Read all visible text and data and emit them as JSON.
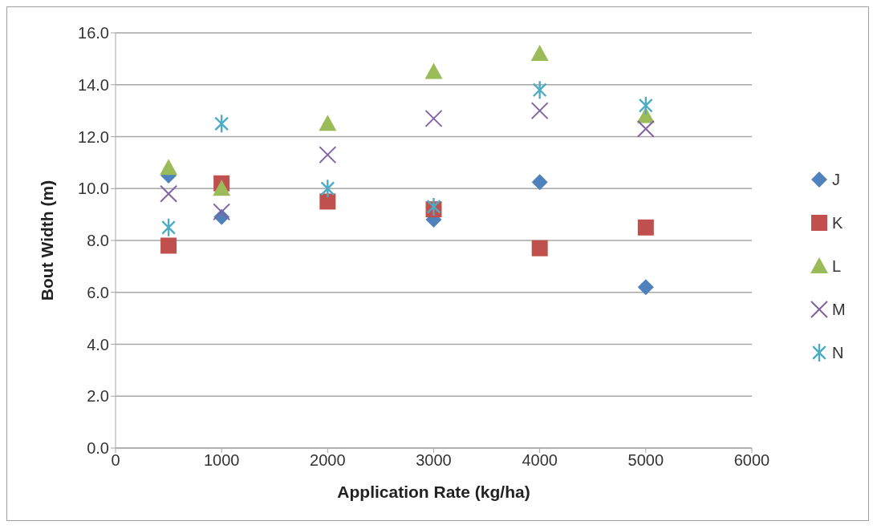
{
  "chart_data": {
    "type": "scatter",
    "xlabel": "Application Rate (kg/ha)",
    "ylabel": "Bout Width (m)",
    "x": [
      500,
      1000,
      2000,
      3000,
      4000,
      5000
    ],
    "xlim": [
      0,
      6000
    ],
    "xticks": [
      0,
      1000,
      2000,
      3000,
      4000,
      5000,
      6000
    ],
    "ylim": [
      0,
      16
    ],
    "yticks": [
      {
        "value": 0,
        "label": "0.0"
      },
      {
        "value": 2,
        "label": "2.0"
      },
      {
        "value": 4,
        "label": "4.0"
      },
      {
        "value": 6,
        "label": "6.0"
      },
      {
        "value": 8,
        "label": "8.0"
      },
      {
        "value": 10,
        "label": "10.0"
      },
      {
        "value": 12,
        "label": "12.0"
      },
      {
        "value": 14,
        "label": "14.0"
      },
      {
        "value": 16,
        "label": "16.0"
      }
    ],
    "grid": "y",
    "legend": "right",
    "series": [
      {
        "name": "J",
        "color": "#4f81bd",
        "marker": "diamond",
        "values": [
          10.5,
          8.9,
          null,
          8.8,
          10.25,
          6.2
        ]
      },
      {
        "name": "K",
        "color": "#c0504d",
        "marker": "square",
        "values": [
          7.8,
          10.2,
          9.5,
          9.2,
          7.7,
          8.5
        ]
      },
      {
        "name": "L",
        "color": "#9bbb59",
        "marker": "triangle",
        "values": [
          10.8,
          10.0,
          12.5,
          14.5,
          15.2,
          12.8
        ]
      },
      {
        "name": "M",
        "color": "#8064a2",
        "marker": "cross",
        "values": [
          9.8,
          9.1,
          11.3,
          12.7,
          13.0,
          12.3
        ]
      },
      {
        "name": "N",
        "color": "#4bacc6",
        "marker": "star",
        "values": [
          8.5,
          12.5,
          10.0,
          9.3,
          13.8,
          13.2
        ]
      }
    ]
  }
}
